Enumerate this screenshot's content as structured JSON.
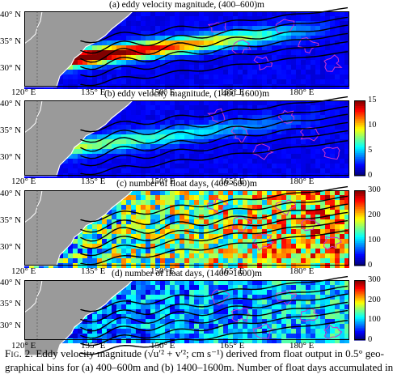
{
  "panels": [
    {
      "title": "(a) eddy velocity magnitude, (400–600)m",
      "kind": "velocity"
    },
    {
      "title": "(b) eddy velocity magnitude, (1400–1600)m",
      "kind": "velocity"
    },
    {
      "title": "(c) number of float days, (400–600)m",
      "kind": "days"
    },
    {
      "title": "(d) number of float days, (1400–1600)m",
      "kind": "days"
    }
  ],
  "y_ticks": [
    "40° N",
    "35° N",
    "30° N"
  ],
  "x_ticks": [
    "120° E",
    "135° E",
    "150° E",
    "165° E",
    "180° E"
  ],
  "colorbar_velocity": {
    "ticks": [
      "15",
      "10",
      "5",
      "0"
    ],
    "min": 0,
    "max": 15
  },
  "colorbar_days": {
    "ticks": [
      "300",
      "200",
      "100",
      "0"
    ],
    "min": 0,
    "max": 300
  },
  "caption": {
    "fig_label": "Fig. 2.",
    "line1_a": "Eddy velocity magnitude (",
    "formula": "√u′² + v′²; cm s⁻¹",
    "line1_b": ") derived from float output in 0.5° geo-",
    "line2": "graphical bins for (a) 400–600m and (b) 1400–1600m. Number of float days accumulated in"
  },
  "colors": {
    "land": "#9a9a9a",
    "contour": "#000000",
    "magenta": "#cc33cc",
    "coast": "#ffffff"
  }
}
